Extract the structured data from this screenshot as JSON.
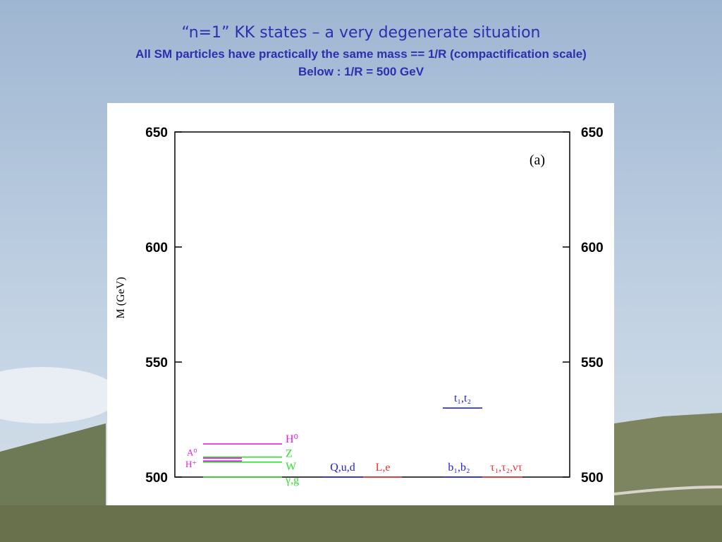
{
  "slide": {
    "title": "“n=1” KK states – a very degenerate situation",
    "subtitle": "All SM particles have practically the same mass == 1/R (compactification scale)",
    "note": "Below : 1/R = 500 GeV"
  },
  "chart_data": {
    "type": "levels",
    "y_label": "M (GeV)",
    "annotation": "(a)",
    "ylim": [
      500,
      650
    ],
    "yticks": [
      500,
      550,
      600,
      650
    ],
    "y2lim": [
      500,
      650
    ],
    "y2ticks": [
      500,
      550,
      600,
      650
    ],
    "levels": [
      {
        "name": "H⁰",
        "color": "#e020e0",
        "value": 514.4
      },
      {
        "name": "A⁰",
        "color": "#e020e0",
        "value": 508.2
      },
      {
        "name": "Z",
        "color": "#30e030",
        "value": 508.7
      },
      {
        "name": "H⁺",
        "color": "#e020e0",
        "value": 507
      },
      {
        "name": "W",
        "color": "#30e030",
        "value": 506.5
      },
      {
        "name": "γ,g",
        "color": "#30e030",
        "value": 500
      },
      {
        "name": "Q,u,d",
        "color": "#2020e0",
        "value": 500
      },
      {
        "name": "L,e",
        "color": "#f03030",
        "value": 500
      },
      {
        "name": "t₁,t₂",
        "color": "#2020e0",
        "value": 530
      },
      {
        "name": "b₁,b₂",
        "color": "#2020e0",
        "value": 500
      },
      {
        "name": "τ₁,τ₂,ντ",
        "color": "#f03030",
        "value": 500
      }
    ]
  }
}
